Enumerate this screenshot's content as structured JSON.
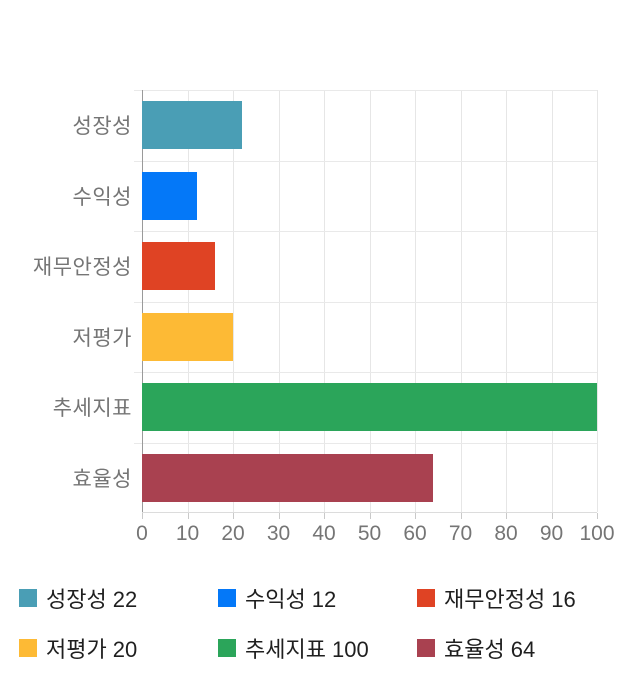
{
  "chart_data": {
    "type": "bar",
    "orientation": "horizontal",
    "title": "",
    "categories": [
      "성장성",
      "수익성",
      "재무안정성",
      "저평가",
      "추세지표",
      "효율성"
    ],
    "values": [
      22,
      12,
      16,
      20,
      100,
      64
    ],
    "colors": [
      "#4A9EB5",
      "#0478F8",
      "#DF4324",
      "#FDBA35",
      "#2BA55A",
      "#A94150"
    ],
    "xlabel": "",
    "ylabel": "",
    "xlim": [
      0,
      100
    ],
    "x_ticks": [
      "0",
      "10",
      "20",
      "30",
      "40",
      "50",
      "60",
      "70",
      "80",
      "90",
      "100"
    ],
    "grid": "on",
    "legend_position": "bottom",
    "legend_items": [
      {
        "label": "성장성",
        "value": "22",
        "color": "#4A9EB5"
      },
      {
        "label": "수익성",
        "value": "12",
        "color": "#0478F8"
      },
      {
        "label": "재무안정성",
        "value": "16",
        "color": "#DF4324"
      },
      {
        "label": "저평가",
        "value": "20",
        "color": "#FDBA35"
      },
      {
        "label": "추세지표",
        "value": "100",
        "color": "#2BA55A"
      },
      {
        "label": "효율성",
        "value": "64",
        "color": "#A94150"
      }
    ]
  },
  "colors": {
    "background": "#ffffff",
    "gridline": "#e6e6e6",
    "axis_line": "#9a9a9a",
    "axis_tick": "#c9c9c9",
    "axis_text": "#757575",
    "legend_text": "#1f1f1f"
  }
}
